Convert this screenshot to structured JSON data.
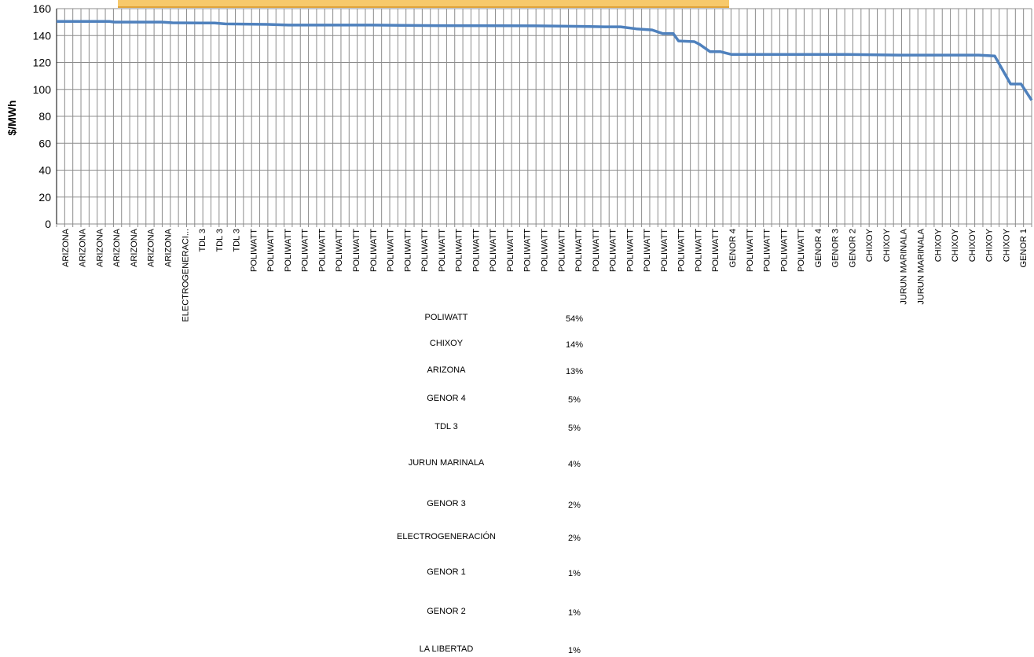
{
  "chart_data": {
    "type": "line",
    "ylabel": "$/MWh",
    "xlabel": "",
    "ylim": [
      0,
      160
    ],
    "yticks": [
      0,
      20,
      40,
      60,
      80,
      100,
      120,
      140,
      160
    ],
    "grid": true,
    "line_color": "#4f81bd",
    "point_count": 120,
    "x_tick_labels": [
      "ARIZONA",
      "ARIZONA",
      "ARIZONA",
      "ARIZONA",
      "ARIZONA",
      "ARIZONA",
      "ARIZONA",
      "ELECTROGENERACI...",
      "TDL 3",
      "TDL 3",
      "TDL 3",
      "POLIWATT",
      "POLIWATT",
      "POLIWATT",
      "POLIWATT",
      "POLIWATT",
      "POLIWATT",
      "POLIWATT",
      "POLIWATT",
      "POLIWATT",
      "POLIWATT",
      "POLIWATT",
      "POLIWATT",
      "POLIWATT",
      "POLIWATT",
      "POLIWATT",
      "POLIWATT",
      "POLIWATT",
      "POLIWATT",
      "POLIWATT",
      "POLIWATT",
      "POLIWATT",
      "POLIWATT",
      "POLIWATT",
      "POLIWATT",
      "POLIWATT",
      "POLIWATT",
      "POLIWATT",
      "POLIWATT",
      "GENOR 4",
      "POLIWATT",
      "POLIWATT",
      "POLIWATT",
      "POLIWATT",
      "GENOR 4",
      "GENOR 3",
      "GENOR 2",
      "CHIXOY",
      "CHIXOY",
      "JURUN MARINALA",
      "JURUN MARINALA",
      "CHIXOY",
      "CHIXOY",
      "CHIXOY",
      "CHIXOY",
      "CHIXOY",
      "GENOR 1"
    ],
    "anchors": [
      [
        0,
        150.5
      ],
      [
        10,
        150.5
      ],
      [
        11,
        150.0
      ],
      [
        20,
        150.0
      ],
      [
        22,
        149.5
      ],
      [
        30,
        149.3
      ],
      [
        32,
        148.7
      ],
      [
        40,
        148.3
      ],
      [
        44,
        147.8
      ],
      [
        60,
        147.8
      ],
      [
        72,
        147.4
      ],
      [
        91,
        147.2
      ],
      [
        100,
        146.8
      ],
      [
        104,
        146.5
      ],
      [
        107,
        146.5
      ],
      [
        110,
        145.0
      ],
      [
        113,
        144.2
      ],
      [
        115,
        141.5
      ],
      [
        117,
        141.5
      ],
      [
        118,
        136.0
      ],
      [
        121,
        135.5
      ],
      [
        122,
        133.5
      ],
      [
        124,
        128.0
      ],
      [
        126,
        128.0
      ],
      [
        128,
        126.0
      ],
      [
        150,
        126.0
      ],
      [
        160,
        125.5
      ],
      [
        175,
        125.5
      ],
      [
        178,
        124.8
      ],
      [
        181,
        104.0
      ],
      [
        183,
        104.0
      ],
      [
        185,
        92.0
      ]
    ],
    "anchor_x_max": 185
  },
  "shares": [
    {
      "name": "POLIWATT",
      "pct": "54%"
    },
    {
      "name": "CHIXOY",
      "pct": "14%"
    },
    {
      "name": "ARIZONA",
      "pct": "13%"
    },
    {
      "name": "GENOR 4",
      "pct": "5%"
    },
    {
      "name": "TDL 3",
      "pct": "5%"
    },
    {
      "name": "JURUN MARINALA",
      "pct": "4%"
    },
    {
      "name": "GENOR 3",
      "pct": "2%"
    },
    {
      "name": "ELECTROGENERACIÓN",
      "pct": "2%"
    },
    {
      "name": "GENOR 1",
      "pct": "1%"
    },
    {
      "name": "GENOR 2",
      "pct": "1%"
    },
    {
      "name": "LA LIBERTAD",
      "pct": "1%"
    }
  ]
}
